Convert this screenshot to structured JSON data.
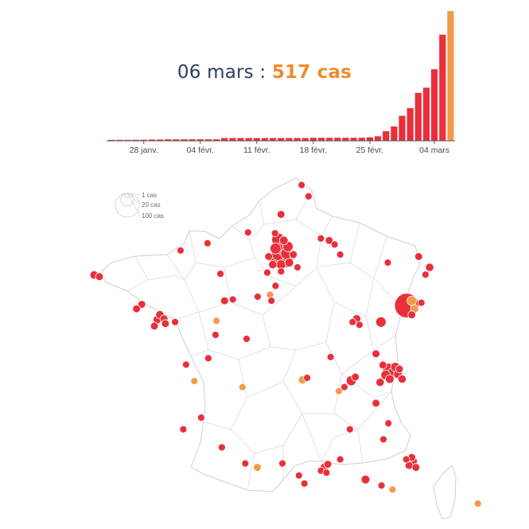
{
  "headline": {
    "date": "06 mars",
    "separator": " : ",
    "count": "517 cas"
  },
  "legend": {
    "items": [
      {
        "label": "1 cas",
        "value": 1
      },
      {
        "label": "20 cas",
        "value": 20
      },
      {
        "label": "100 cas",
        "value": 100
      }
    ]
  },
  "colors": {
    "bar": "#e8303a",
    "bar_highlight": "#f39a4c",
    "dot_red": "#e8303a",
    "dot_orange": "#f39a4c",
    "border": "#cfcfcf",
    "axis": "#555555"
  },
  "chart_data": [
    {
      "type": "bar",
      "title": "",
      "xlabel": "",
      "ylabel": "",
      "ylim": [
        0,
        517
      ],
      "grid": false,
      "x_tick_labels": [
        "28 janv.",
        "04 févr.",
        "11 févr.",
        "18 févr.",
        "25 févr.",
        "04 mars"
      ],
      "categories": [
        "24 janv.",
        "25 janv.",
        "26 janv.",
        "27 janv.",
        "28 janv.",
        "29 janv.",
        "30 janv.",
        "31 janv.",
        "01 févr.",
        "02 févr.",
        "03 févr.",
        "04 févr.",
        "05 févr.",
        "06 févr.",
        "07 févr.",
        "08 févr.",
        "09 févr.",
        "10 févr.",
        "11 févr.",
        "12 févr.",
        "13 févr.",
        "14 févr.",
        "15 févr.",
        "16 févr.",
        "17 févr.",
        "18 févr.",
        "19 févr.",
        "20 févr.",
        "21 févr.",
        "22 févr.",
        "23 févr.",
        "24 févr.",
        "25 févr.",
        "26 févr.",
        "27 févr.",
        "28 févr.",
        "29 févr.",
        "01 mars",
        "02 mars",
        "03 mars",
        "04 mars",
        "05 mars",
        "06 mars"
      ],
      "values": [
        2,
        3,
        3,
        4,
        4,
        5,
        5,
        6,
        6,
        6,
        6,
        6,
        6,
        6,
        11,
        11,
        11,
        11,
        11,
        11,
        11,
        11,
        11,
        11,
        11,
        12,
        12,
        12,
        12,
        12,
        12,
        12,
        14,
        18,
        38,
        57,
        100,
        130,
        191,
        212,
        285,
        423,
        517
      ],
      "highlight_category": "06 mars"
    },
    {
      "type": "scatter",
      "title": "",
      "x": "longitude",
      "y": "latitude",
      "size": "cas",
      "points": [
        {
          "x": 2.35,
          "y": 48.86,
          "cas": 88,
          "color": "red"
        },
        {
          "x": 2.45,
          "y": 48.76,
          "cas": 30,
          "color": "red"
        },
        {
          "x": 2.15,
          "y": 48.8,
          "cas": 32,
          "color": "red"
        },
        {
          "x": 2.2,
          "y": 48.92,
          "cas": 22,
          "color": "red"
        },
        {
          "x": 2.5,
          "y": 48.92,
          "cas": 14,
          "color": "red"
        },
        {
          "x": 2.35,
          "y": 49.05,
          "cas": 18,
          "color": "red"
        },
        {
          "x": 2.1,
          "y": 49.05,
          "cas": 12,
          "color": "red"
        },
        {
          "x": 2.55,
          "y": 49.1,
          "cas": 10,
          "color": "red"
        },
        {
          "x": 2.3,
          "y": 48.65,
          "cas": 8,
          "color": "red"
        },
        {
          "x": 2.6,
          "y": 48.7,
          "cas": 6,
          "color": "red"
        },
        {
          "x": 2.0,
          "y": 48.65,
          "cas": 5,
          "color": "red"
        },
        {
          "x": 2.4,
          "y": 49.25,
          "cas": 6,
          "color": "red"
        },
        {
          "x": 2.2,
          "y": 49.27,
          "cas": 20,
          "color": "red"
        },
        {
          "x": 2.08,
          "y": 49.43,
          "cas": 3,
          "color": "red"
        },
        {
          "x": 1.85,
          "y": 48.85,
          "cas": 4,
          "color": "red"
        },
        {
          "x": 2.75,
          "y": 48.9,
          "cas": 4,
          "color": "red"
        },
        {
          "x": 2.3,
          "y": 48.48,
          "cas": 3,
          "color": "red"
        },
        {
          "x": 6.87,
          "y": 47.63,
          "cas": 96,
          "color": "red"
        },
        {
          "x": 7.05,
          "y": 47.75,
          "cas": 8,
          "color": "orange"
        },
        {
          "x": 7.15,
          "y": 47.55,
          "cas": 5,
          "color": "orange"
        },
        {
          "x": 7.05,
          "y": 47.4,
          "cas": 4,
          "color": "red"
        },
        {
          "x": 7.4,
          "y": 47.7,
          "cas": 3,
          "color": "red"
        },
        {
          "x": 5.93,
          "y": 47.22,
          "cas": 10,
          "color": "red"
        },
        {
          "x": 5.05,
          "y": 47.3,
          "cas": 5,
          "color": "red"
        },
        {
          "x": 4.9,
          "y": 47.22,
          "cas": 3,
          "color": "red"
        },
        {
          "x": 5.15,
          "y": 47.15,
          "cas": 3,
          "color": "red"
        },
        {
          "x": 6.2,
          "y": 46.05,
          "cas": 14,
          "color": "red"
        },
        {
          "x": 6.35,
          "y": 45.95,
          "cas": 10,
          "color": "red"
        },
        {
          "x": 6.45,
          "y": 46.1,
          "cas": 7,
          "color": "red"
        },
        {
          "x": 6.1,
          "y": 45.9,
          "cas": 8,
          "color": "red"
        },
        {
          "x": 6.55,
          "y": 45.92,
          "cas": 6,
          "color": "red"
        },
        {
          "x": 6.7,
          "y": 45.8,
          "cas": 5,
          "color": "red"
        },
        {
          "x": 6.25,
          "y": 45.8,
          "cas": 6,
          "color": "red"
        },
        {
          "x": 6.0,
          "y": 46.15,
          "cas": 4,
          "color": "red"
        },
        {
          "x": 6.6,
          "y": 46.05,
          "cas": 4,
          "color": "red"
        },
        {
          "x": 5.9,
          "y": 45.72,
          "cas": 5,
          "color": "red"
        },
        {
          "x": 4.85,
          "y": 45.76,
          "cas": 9,
          "color": "red"
        },
        {
          "x": 5.0,
          "y": 45.85,
          "cas": 4,
          "color": "red"
        },
        {
          "x": 4.6,
          "y": 45.6,
          "cas": 3,
          "color": "red"
        },
        {
          "x": 5.75,
          "y": 45.2,
          "cas": 4,
          "color": "red"
        },
        {
          "x": 7.3,
          "y": 48.85,
          "cas": 4,
          "color": "red"
        },
        {
          "x": 7.7,
          "y": 48.58,
          "cas": 5,
          "color": "red"
        },
        {
          "x": 7.55,
          "y": 48.4,
          "cas": 3,
          "color": "red"
        },
        {
          "x": 6.18,
          "y": 48.7,
          "cas": 3,
          "color": "red"
        },
        {
          "x": 4.45,
          "y": 48.9,
          "cas": 3,
          "color": "red"
        },
        {
          "x": 4.05,
          "y": 49.25,
          "cas": 4,
          "color": "red"
        },
        {
          "x": 4.25,
          "y": 49.15,
          "cas": 3,
          "color": "red"
        },
        {
          "x": 3.75,
          "y": 49.3,
          "cas": 3,
          "color": "red"
        },
        {
          "x": 3.05,
          "y": 50.63,
          "cas": 3,
          "color": "red"
        },
        {
          "x": 3.3,
          "y": 50.35,
          "cas": 3,
          "color": "red"
        },
        {
          "x": 2.3,
          "y": 49.9,
          "cas": 4,
          "color": "red"
        },
        {
          "x": 1.1,
          "y": 49.45,
          "cas": 3,
          "color": "red"
        },
        {
          "x": -0.37,
          "y": 49.18,
          "cas": 3,
          "color": "red"
        },
        {
          "x": -1.35,
          "y": 49.0,
          "cas": 3,
          "color": "red"
        },
        {
          "x": 0.1,
          "y": 48.42,
          "cas": 3,
          "color": "red"
        },
        {
          "x": -4.49,
          "y": 48.39,
          "cas": 5,
          "color": "red"
        },
        {
          "x": -4.3,
          "y": 48.35,
          "cas": 4,
          "color": "red"
        },
        {
          "x": -2.76,
          "y": 47.66,
          "cas": 4,
          "color": "red"
        },
        {
          "x": -2.95,
          "y": 47.55,
          "cas": 4,
          "color": "red"
        },
        {
          "x": -2.2,
          "y": 47.28,
          "cas": 5,
          "color": "red"
        },
        {
          "x": -1.95,
          "y": 47.3,
          "cas": 4,
          "color": "red"
        },
        {
          "x": -2.1,
          "y": 47.4,
          "cas": 5,
          "color": "red"
        },
        {
          "x": -1.9,
          "y": 47.18,
          "cas": 4,
          "color": "red"
        },
        {
          "x": -2.3,
          "y": 47.12,
          "cas": 4,
          "color": "red"
        },
        {
          "x": -1.55,
          "y": 47.22,
          "cas": 3,
          "color": "red"
        },
        {
          "x": 0.25,
          "y": 47.75,
          "cas": 4,
          "color": "red"
        },
        {
          "x": 0.55,
          "y": 47.78,
          "cas": 3,
          "color": "red"
        },
        {
          "x": -0.05,
          "y": 47.25,
          "cas": 3,
          "color": "orange"
        },
        {
          "x": -0.08,
          "y": 46.9,
          "cas": 3,
          "color": "red"
        },
        {
          "x": 1.45,
          "y": 47.85,
          "cas": 3,
          "color": "red"
        },
        {
          "x": 1.9,
          "y": 47.9,
          "cas": 3,
          "color": "orange"
        },
        {
          "x": 1.95,
          "y": 47.75,
          "cas": 3,
          "color": "red"
        },
        {
          "x": -0.34,
          "y": 46.32,
          "cas": 3,
          "color": "red"
        },
        {
          "x": -0.85,
          "y": 45.75,
          "cas": 3,
          "color": "orange"
        },
        {
          "x": -1.15,
          "y": 46.16,
          "cas": 3,
          "color": "red"
        },
        {
          "x": 0.9,
          "y": 45.6,
          "cas": 3,
          "color": "orange"
        },
        {
          "x": 3.08,
          "y": 45.78,
          "cas": 5,
          "color": "orange"
        },
        {
          "x": 3.25,
          "y": 45.83,
          "cas": 3,
          "color": "red"
        },
        {
          "x": 4.1,
          "y": 46.35,
          "cas": 3,
          "color": "red"
        },
        {
          "x": 4.4,
          "y": 45.5,
          "cas": 3,
          "color": "orange"
        },
        {
          "x": 5.75,
          "y": 46.43,
          "cas": 4,
          "color": "red"
        },
        {
          "x": 1.05,
          "y": 46.8,
          "cas": 3,
          "color": "red"
        },
        {
          "x": -1.25,
          "y": 44.55,
          "cas": 3,
          "color": "red"
        },
        {
          "x": -0.6,
          "y": 44.84,
          "cas": 3,
          "color": "red"
        },
        {
          "x": 1.44,
          "y": 43.6,
          "cas": 4,
          "color": "orange"
        },
        {
          "x": 1.0,
          "y": 43.7,
          "cas": 3,
          "color": "red"
        },
        {
          "x": 0.15,
          "y": 44.1,
          "cas": 3,
          "color": "red"
        },
        {
          "x": 2.35,
          "y": 43.7,
          "cas": 3,
          "color": "red"
        },
        {
          "x": 2.95,
          "y": 43.4,
          "cas": 3,
          "color": "red"
        },
        {
          "x": 3.88,
          "y": 43.61,
          "cas": 5,
          "color": "red"
        },
        {
          "x": 4.0,
          "y": 43.68,
          "cas": 4,
          "color": "red"
        },
        {
          "x": 3.75,
          "y": 43.52,
          "cas": 3,
          "color": "red"
        },
        {
          "x": 3.95,
          "y": 43.47,
          "cas": 3,
          "color": "red"
        },
        {
          "x": 3.15,
          "y": 43.2,
          "cas": 3,
          "color": "red"
        },
        {
          "x": 4.8,
          "y": 44.55,
          "cas": 3,
          "color": "red"
        },
        {
          "x": 5.37,
          "y": 43.3,
          "cas": 6,
          "color": "red"
        },
        {
          "x": 4.45,
          "y": 43.8,
          "cas": 3,
          "color": "red"
        },
        {
          "x": 6.02,
          "y": 44.3,
          "cas": 3,
          "color": "red"
        },
        {
          "x": 6.2,
          "y": 44.7,
          "cas": 3,
          "color": "red"
        },
        {
          "x": 7.1,
          "y": 43.75,
          "cas": 5,
          "color": "red"
        },
        {
          "x": 6.95,
          "y": 43.65,
          "cas": 4,
          "color": "red"
        },
        {
          "x": 7.2,
          "y": 43.6,
          "cas": 4,
          "color": "red"
        },
        {
          "x": 7.05,
          "y": 43.85,
          "cas": 4,
          "color": "red"
        },
        {
          "x": 6.85,
          "y": 43.8,
          "cas": 3,
          "color": "red"
        },
        {
          "x": 5.95,
          "y": 43.15,
          "cas": 3,
          "color": "red"
        },
        {
          "x": 6.35,
          "y": 43.05,
          "cas": 3,
          "color": "orange"
        },
        {
          "x": 9.45,
          "y": 42.7,
          "cas": 3,
          "color": "orange"
        },
        {
          "x": 8.75,
          "y": 41.93,
          "cas": 3,
          "color": "red"
        },
        {
          "x": 2.1,
          "y": 48.12,
          "cas": 3,
          "color": "red"
        },
        {
          "x": 1.8,
          "y": 48.45,
          "cas": 3,
          "color": "red"
        },
        {
          "x": 2.9,
          "y": 48.58,
          "cas": 3,
          "color": "red"
        }
      ]
    }
  ]
}
